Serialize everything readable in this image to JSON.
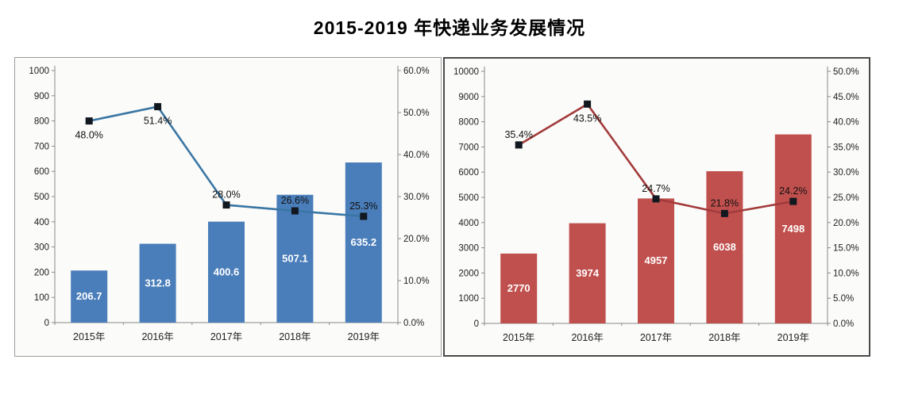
{
  "title": "2015-2019 年快递业务发展情况",
  "chart_data": [
    {
      "name": "express-volume-chart",
      "type": "bar+line",
      "categories": [
        "2015年",
        "2016年",
        "2017年",
        "2018年",
        "2019年"
      ],
      "series": [
        {
          "id": "bar-series",
          "type": "bar",
          "axis": "left",
          "values": [
            206.7,
            312.8,
            400.6,
            507.1,
            635.2
          ],
          "labels": [
            "206.7",
            "312.8",
            "400.6",
            "507.1",
            "635.2"
          ],
          "color": "#4a7eba",
          "label_color": "#ffffff"
        },
        {
          "id": "line-series",
          "type": "line",
          "axis": "right",
          "values": [
            48.0,
            51.4,
            28.0,
            26.6,
            25.3
          ],
          "labels": [
            "48.0%",
            "51.4%",
            "28.0%",
            "26.6%",
            "25.3%"
          ],
          "label_side": [
            "below",
            "below",
            "above",
            "above",
            "above"
          ],
          "color": "#3a76a4",
          "marker_color": "#121820",
          "label_color": "#111111"
        }
      ],
      "left_axis": {
        "min": 0,
        "max": 1000,
        "step": 100,
        "tick_labels": [
          "0",
          "100",
          "200",
          "300",
          "400",
          "500",
          "600",
          "700",
          "800",
          "900",
          "1000"
        ]
      },
      "right_axis": {
        "min": 0,
        "max": 60,
        "step": 10,
        "tick_labels": [
          "0.0%",
          "10.0%",
          "20.0%",
          "30.0%",
          "40.0%",
          "50.0%",
          "60.0%"
        ]
      },
      "grid": false,
      "legend": "none",
      "panel_border_color": "#9b9b9b"
    },
    {
      "name": "express-revenue-chart",
      "type": "bar+line",
      "categories": [
        "2015年",
        "2016年",
        "2017年",
        "2018年",
        "2019年"
      ],
      "series": [
        {
          "id": "bar-series",
          "type": "bar",
          "axis": "left",
          "values": [
            2770,
            3974,
            4957,
            6038,
            7498
          ],
          "labels": [
            "2770",
            "3974",
            "4957",
            "6038",
            "7498"
          ],
          "color": "#c0504d",
          "label_color": "#ffffff"
        },
        {
          "id": "line-series",
          "type": "line",
          "axis": "right",
          "values": [
            35.4,
            43.5,
            24.7,
            21.8,
            24.2
          ],
          "labels": [
            "35.4%",
            "43.5%",
            "24.7%",
            "21.8%",
            "24.2%"
          ],
          "label_side": [
            "above",
            "below",
            "above",
            "above",
            "above"
          ],
          "color": "#a23b3b",
          "marker_color": "#121820",
          "label_color": "#111111"
        }
      ],
      "left_axis": {
        "min": 0,
        "max": 10000,
        "step": 1000,
        "tick_labels": [
          "0",
          "1000",
          "2000",
          "3000",
          "4000",
          "5000",
          "6000",
          "7000",
          "8000",
          "9000",
          "10000"
        ]
      },
      "right_axis": {
        "min": 0,
        "max": 50,
        "step": 5,
        "tick_labels": [
          "0.0%",
          "5.0%",
          "10.0%",
          "15.0%",
          "20.0%",
          "25.0%",
          "30.0%",
          "35.0%",
          "40.0%",
          "45.0%",
          "50.0%"
        ]
      },
      "grid": false,
      "legend": "none",
      "panel_border_color": "#4a4a4a"
    }
  ]
}
